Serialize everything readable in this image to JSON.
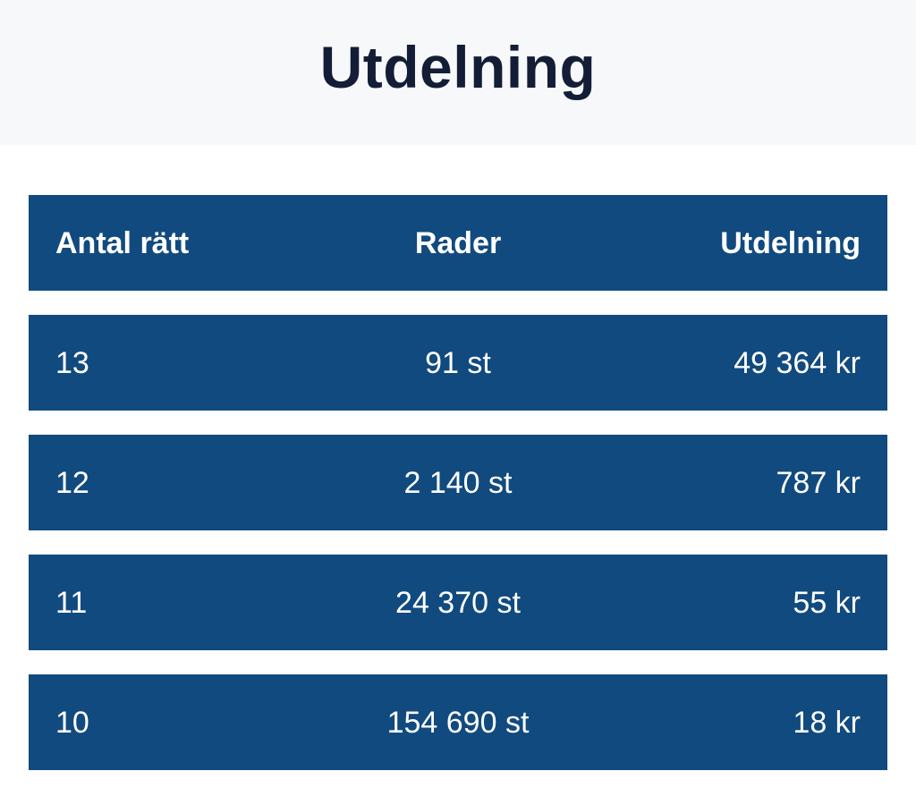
{
  "page": {
    "title": "Utdelning"
  },
  "table": {
    "columns": [
      "Antal rätt",
      "Rader",
      "Utdelning"
    ],
    "rows": [
      [
        "13",
        "91 st",
        "49 364 kr"
      ],
      [
        "12",
        "2 140 st",
        "787 kr"
      ],
      [
        "11",
        "24 370 st",
        "55 kr"
      ],
      [
        "10",
        "154 690 st",
        "18 kr"
      ]
    ]
  },
  "colors": {
    "row_background": "#114a7e",
    "row_text": "#ffffff",
    "title_text": "#131d36",
    "header_band_background": "#f7f8fa",
    "page_background": "#ffffff"
  }
}
